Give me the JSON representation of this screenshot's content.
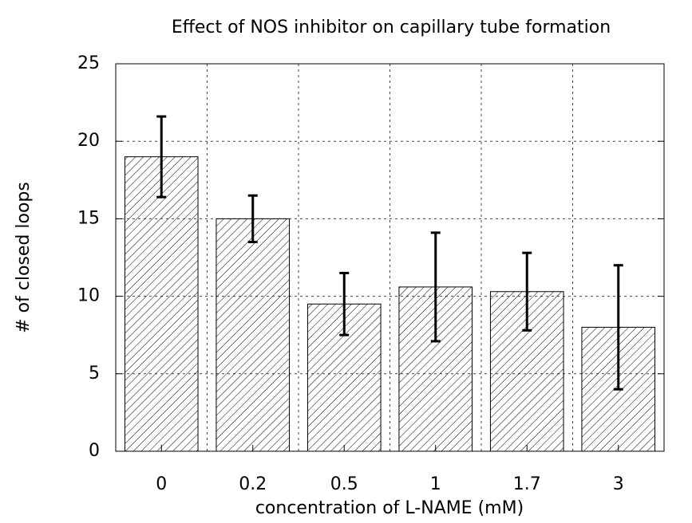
{
  "chart_data": {
    "type": "bar",
    "title": "Effect of NOS inhibitor on capillary tube formation",
    "xlabel": "concentration of L-NAME (mM)",
    "ylabel": "# of closed loops",
    "categories": [
      "0",
      "0.2",
      "0.5",
      "1",
      "1.7",
      "3"
    ],
    "values": [
      19,
      15,
      9.5,
      10.6,
      10.3,
      8
    ],
    "errors": [
      2.6,
      1.5,
      2,
      3.5,
      2.5,
      4
    ],
    "color": "#000000",
    "ylim": [
      0,
      25
    ],
    "yticks": [
      0,
      5,
      10,
      15,
      20,
      25
    ],
    "grid": true
  }
}
